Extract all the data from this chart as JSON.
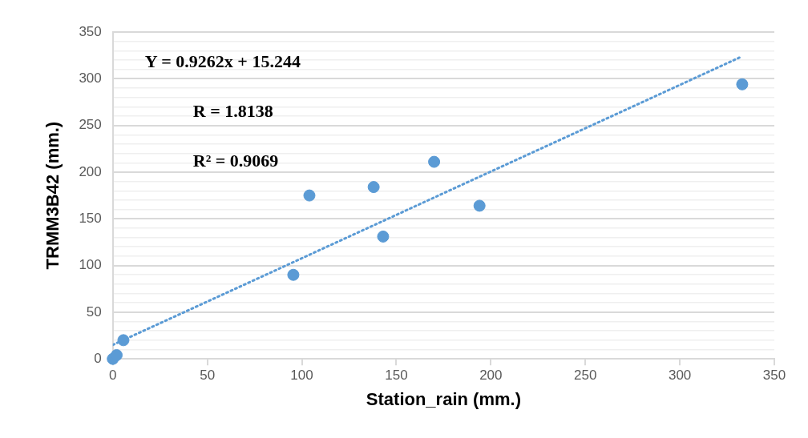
{
  "chart_data": {
    "type": "scatter",
    "xlabel": "Station_rain (mm.)",
    "ylabel": "TRMM3B42 (mm.)",
    "annotations": [
      "Y = 0.9262x + 15.244",
      "R = 1.8138",
      "R² = 0.9069"
    ],
    "series": [
      {
        "type": "scatter",
        "color": "#5b9bd5",
        "x": [
          0,
          2,
          5.6,
          95.5,
          104,
          138,
          143,
          170,
          194,
          333
        ],
        "values": [
          0,
          4,
          20,
          90,
          175,
          184,
          131,
          211,
          164,
          294
        ],
        "marker": "circle"
      },
      {
        "type": "line",
        "color": "#5b9bd5",
        "x": [
          0,
          333
        ],
        "values": [
          15,
          324
        ],
        "line_style": "dotted",
        "marker": "none"
      }
    ],
    "xlim": [
      0,
      350
    ],
    "xticks": [
      0,
      50,
      100,
      150,
      200,
      250,
      300,
      350
    ],
    "ylim": [
      0,
      350
    ],
    "yticks": [
      0,
      {
        "value": 10,
        "label": null
      },
      {
        "value": 20,
        "label": null
      },
      {
        "value": 30,
        "label": null
      },
      {
        "value": 40,
        "label": null
      },
      50,
      {
        "value": 60,
        "label": null
      },
      {
        "value": 70,
        "label": null
      },
      {
        "value": 80,
        "label": null
      },
      {
        "value": 90,
        "label": null
      },
      100,
      {
        "value": 110,
        "label": null
      },
      {
        "value": 120,
        "label": null
      },
      {
        "value": 130,
        "label": null
      },
      {
        "value": 140,
        "label": null
      },
      150,
      {
        "value": 160,
        "label": null
      },
      {
        "value": 170,
        "label": null
      },
      {
        "value": 180,
        "label": null
      },
      {
        "value": 190,
        "label": null
      },
      200,
      {
        "value": 210,
        "label": null
      },
      {
        "value": 220,
        "label": null
      },
      {
        "value": 230,
        "label": null
      },
      {
        "value": 240,
        "label": null
      },
      250,
      {
        "value": 260,
        "label": null
      },
      {
        "value": 270,
        "label": null
      },
      {
        "value": 280,
        "label": null
      },
      {
        "value": 290,
        "label": null
      },
      300,
      {
        "value": 310,
        "label": null
      },
      {
        "value": 320,
        "label": null
      },
      {
        "value": 330,
        "label": null
      },
      {
        "value": 340,
        "label": null
      },
      350
    ],
    "grid": "y",
    "legend": false
  }
}
